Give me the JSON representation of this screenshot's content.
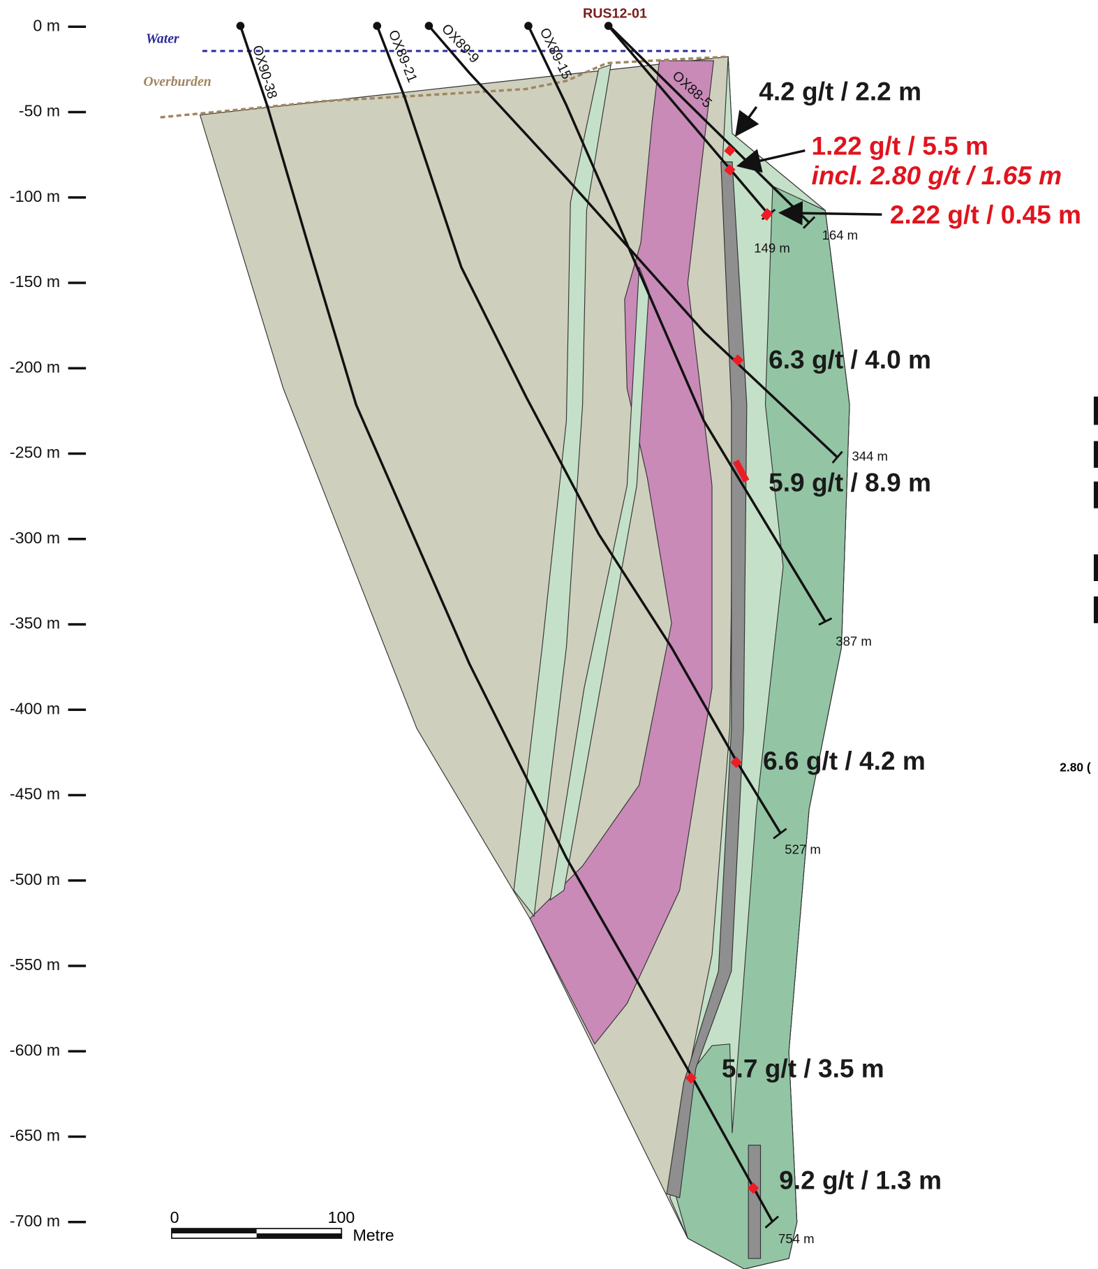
{
  "axis": {
    "labels": [
      "0 m",
      "-50 m",
      "-100 m",
      "-150 m",
      "-200 m",
      "-250 m",
      "-300 m",
      "-350 m",
      "-400 m",
      "-450 m",
      "-500 m",
      "-550 m",
      "-600 m",
      "-650 m",
      "-700 m"
    ]
  },
  "surface": {
    "water": "Water",
    "overburden": "Overburden"
  },
  "collar": "RUS12-01",
  "holes": [
    {
      "name": "OX90-38",
      "end": "754 m"
    },
    {
      "name": "OX89-21",
      "end": "527 m"
    },
    {
      "name": "OX89-9",
      "end": "344 m"
    },
    {
      "name": "OX89-15",
      "end": "387 m"
    },
    {
      "name": "OX88-5",
      "end": "164 m"
    }
  ],
  "rus_end": "149 m",
  "intercepts": [
    "4.2 g/t / 2.2 m",
    "1.22 g/t / 5.5 m",
    "incl. 2.80 g/t / 1.65 m",
    "2.22 g/t / 0.45 m",
    "6.3 g/t / 4.0 m",
    "5.9 g/t / 8.9 m",
    "6.6 g/t / 4.2 m",
    "5.7 g/t / 3.5 m",
    "9.2 g/t / 1.3 m"
  ],
  "scale": {
    "start": "0",
    "end": "100",
    "unit": "Metre"
  },
  "partial_text": "2.80 ("
}
